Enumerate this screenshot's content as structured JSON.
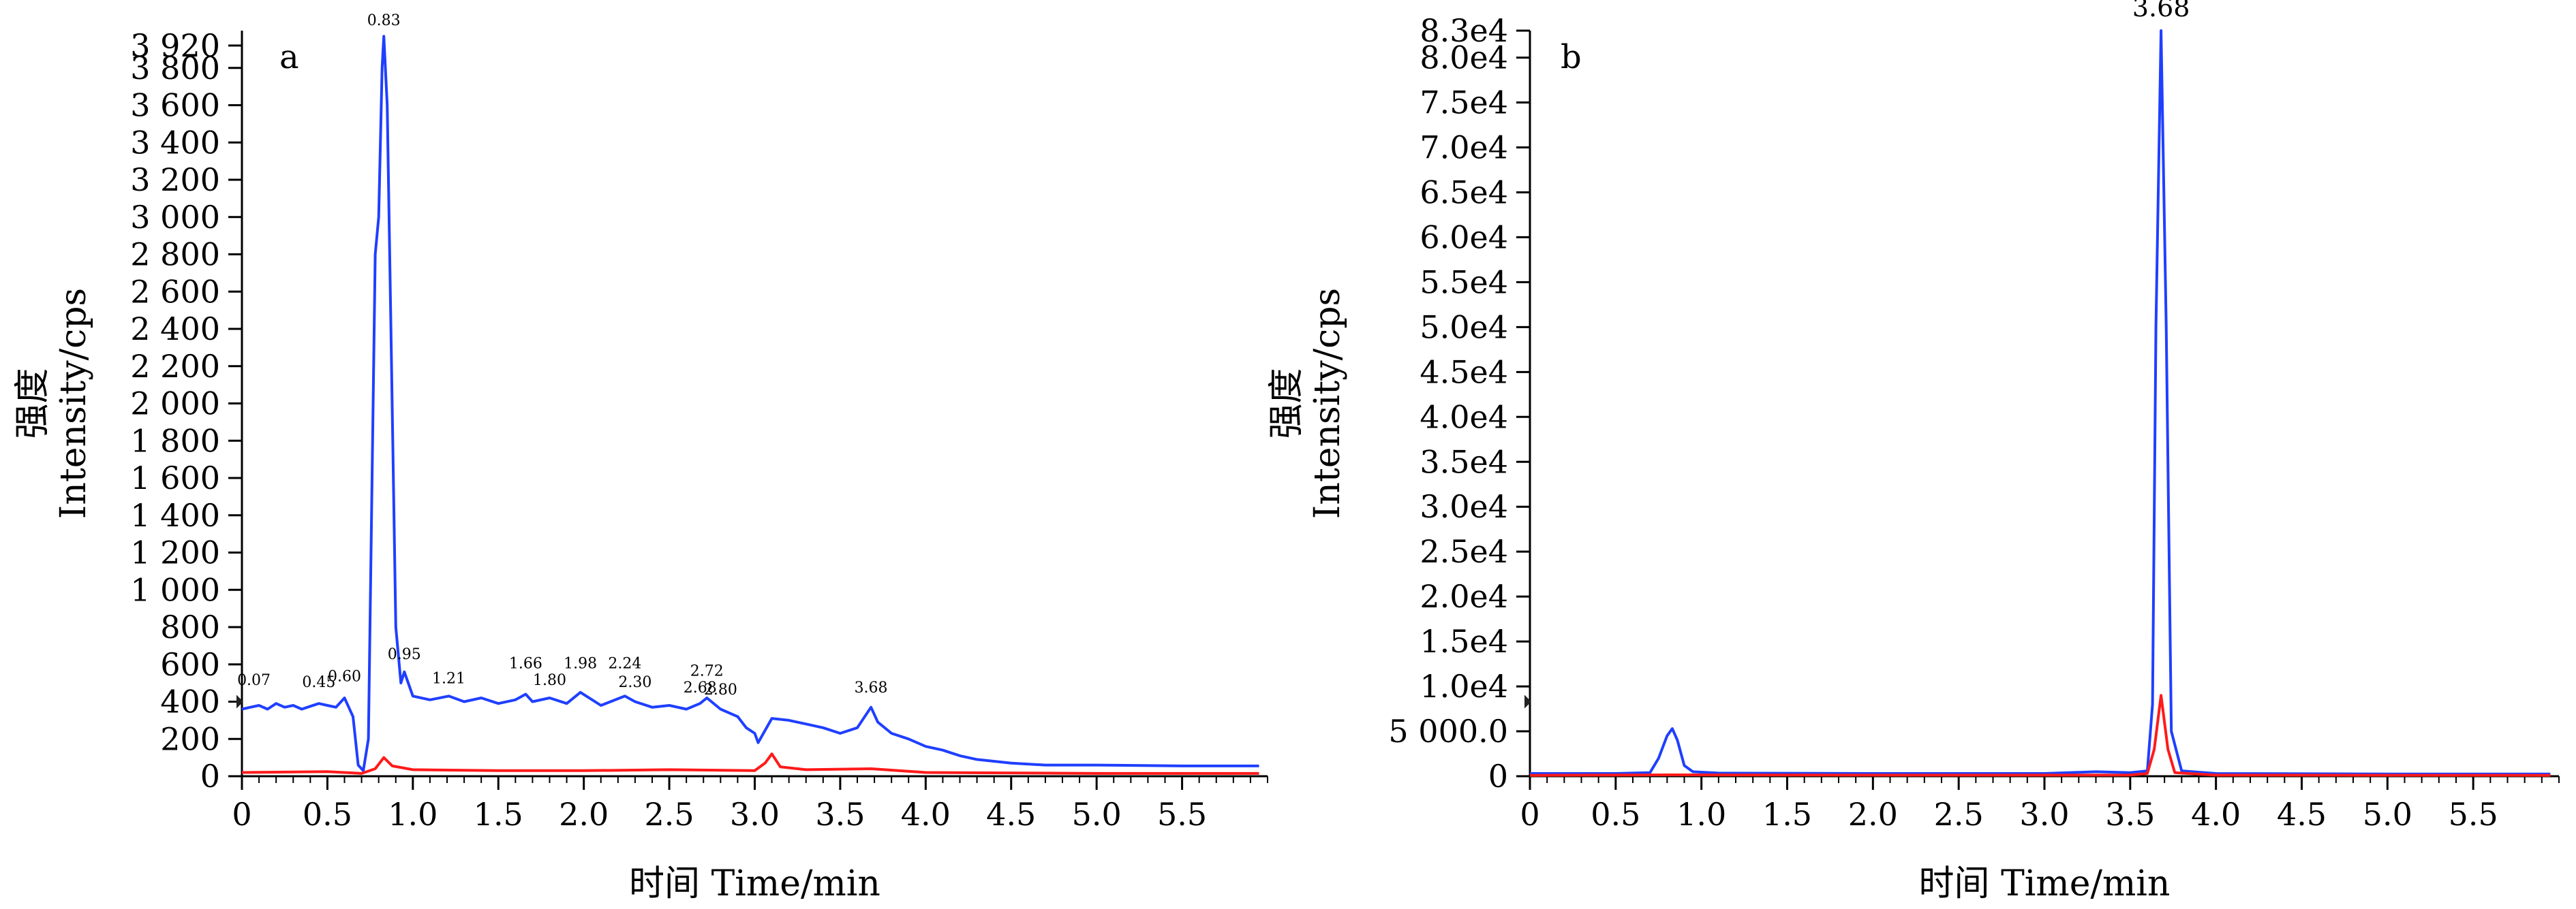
{
  "chart_data": [
    {
      "panel": "a",
      "type": "line",
      "xlabel": "时间 Time/min",
      "ylabel_cn": "强度",
      "ylabel_en": "Intensity/cps",
      "xlim": [
        0,
        6
      ],
      "ylim": [
        0,
        4000
      ],
      "x_ticks": [
        0,
        0.5,
        1.0,
        1.5,
        2.0,
        2.5,
        3.0,
        3.5,
        4.0,
        4.5,
        5.0,
        5.5
      ],
      "x_tick_labels": [
        "0",
        "0.5",
        "1.0",
        "1.5",
        "2.0",
        "2.5",
        "3.0",
        "3.5",
        "4.0",
        "4.5",
        "5.0",
        "5.5"
      ],
      "y_ticks": [
        0,
        200,
        400,
        600,
        800,
        1000,
        1200,
        1400,
        1600,
        1800,
        2000,
        2200,
        2400,
        2600,
        2800,
        3000,
        3200,
        3400,
        3600,
        3800,
        3920
      ],
      "y_tick_labels": [
        "0",
        "200",
        "400",
        "600",
        "800",
        "1 000",
        "1 200",
        "1 400",
        "1 600",
        "1 800",
        "2 000",
        "2 200",
        "2 400",
        "2 600",
        "2 800",
        "3 000",
        "3 200",
        "3 400",
        "3 600",
        "3 800",
        "3 920"
      ],
      "series": [
        {
          "color": "#1f3fff",
          "points": [
            [
              0,
              360
            ],
            [
              0.05,
              370
            ],
            [
              0.1,
              380
            ],
            [
              0.15,
              360
            ],
            [
              0.2,
              390
            ],
            [
              0.25,
              370
            ],
            [
              0.3,
              380
            ],
            [
              0.35,
              360
            ],
            [
              0.4,
              375
            ],
            [
              0.45,
              390
            ],
            [
              0.5,
              380
            ],
            [
              0.55,
              370
            ],
            [
              0.6,
              420
            ],
            [
              0.65,
              320
            ],
            [
              0.68,
              60
            ],
            [
              0.71,
              30
            ],
            [
              0.74,
              200
            ],
            [
              0.78,
              2800
            ],
            [
              0.8,
              3000
            ],
            [
              0.82,
              3800
            ],
            [
              0.83,
              3970
            ],
            [
              0.85,
              3600
            ],
            [
              0.87,
              2500
            ],
            [
              0.9,
              800
            ],
            [
              0.93,
              500
            ],
            [
              0.95,
              560
            ],
            [
              1.0,
              430
            ],
            [
              1.1,
              410
            ],
            [
              1.21,
              430
            ],
            [
              1.3,
              400
            ],
            [
              1.4,
              420
            ],
            [
              1.5,
              390
            ],
            [
              1.6,
              410
            ],
            [
              1.66,
              440
            ],
            [
              1.7,
              400
            ],
            [
              1.8,
              420
            ],
            [
              1.9,
              390
            ],
            [
              1.98,
              450
            ],
            [
              2.1,
              380
            ],
            [
              2.24,
              430
            ],
            [
              2.3,
              400
            ],
            [
              2.4,
              370
            ],
            [
              2.5,
              380
            ],
            [
              2.6,
              360
            ],
            [
              2.68,
              390
            ],
            [
              2.72,
              420
            ],
            [
              2.8,
              360
            ],
            [
              2.9,
              320
            ],
            [
              2.95,
              260
            ],
            [
              3.0,
              230
            ],
            [
              3.02,
              180
            ],
            [
              3.1,
              310
            ],
            [
              3.2,
              300
            ],
            [
              3.3,
              280
            ],
            [
              3.4,
              260
            ],
            [
              3.5,
              230
            ],
            [
              3.6,
              260
            ],
            [
              3.68,
              370
            ],
            [
              3.72,
              290
            ],
            [
              3.8,
              230
            ],
            [
              3.9,
              200
            ],
            [
              4.0,
              160
            ],
            [
              4.1,
              140
            ],
            [
              4.2,
              110
            ],
            [
              4.3,
              90
            ],
            [
              4.5,
              70
            ],
            [
              4.7,
              60
            ],
            [
              5.0,
              60
            ],
            [
              5.5,
              55
            ],
            [
              5.95,
              55
            ]
          ]
        },
        {
          "color": "#ff1a1a",
          "points": [
            [
              0,
              20
            ],
            [
              0.5,
              25
            ],
            [
              0.7,
              15
            ],
            [
              0.78,
              40
            ],
            [
              0.83,
              100
            ],
            [
              0.88,
              55
            ],
            [
              1.0,
              35
            ],
            [
              1.5,
              30
            ],
            [
              2.0,
              30
            ],
            [
              2.5,
              35
            ],
            [
              3.0,
              30
            ],
            [
              3.06,
              70
            ],
            [
              3.1,
              120
            ],
            [
              3.15,
              50
            ],
            [
              3.3,
              35
            ],
            [
              3.68,
              40
            ],
            [
              4.0,
              20
            ],
            [
              5.0,
              15
            ],
            [
              5.95,
              15
            ]
          ]
        }
      ],
      "annotations": [
        {
          "text": "0.07",
          "x": 0.07,
          "y": 460
        },
        {
          "text": "0.45",
          "x": 0.45,
          "y": 450
        },
        {
          "text": "0.60",
          "x": 0.6,
          "y": 480
        },
        {
          "text": "0.83",
          "x": 0.83,
          "y": 4000
        },
        {
          "text": "0.95",
          "x": 0.95,
          "y": 600
        },
        {
          "text": "1.21",
          "x": 1.21,
          "y": 470
        },
        {
          "text": "1.66",
          "x": 1.66,
          "y": 550
        },
        {
          "text": "1.80",
          "x": 1.8,
          "y": 460
        },
        {
          "text": "1.98",
          "x": 1.98,
          "y": 550
        },
        {
          "text": "2.24",
          "x": 2.24,
          "y": 550
        },
        {
          "text": "2.30",
          "x": 2.3,
          "y": 450
        },
        {
          "text": "2.68",
          "x": 2.68,
          "y": 420
        },
        {
          "text": "2.72",
          "x": 2.72,
          "y": 510
        },
        {
          "text": "2.80",
          "x": 2.8,
          "y": 410
        },
        {
          "text": "3.68",
          "x": 3.68,
          "y": 420
        }
      ]
    },
    {
      "panel": "b",
      "type": "line",
      "xlabel": "时间 Time/min",
      "ylabel_cn": "强度",
      "ylabel_en": "Intensity/cps",
      "xlim": [
        0,
        6
      ],
      "ylim": [
        0,
        83000
      ],
      "x_ticks": [
        0,
        0.5,
        1.0,
        1.5,
        2.0,
        2.5,
        3.0,
        3.5,
        4.0,
        4.5,
        5.0,
        5.5
      ],
      "x_tick_labels": [
        "0",
        "0.5",
        "1.0",
        "1.5",
        "2.0",
        "2.5",
        "3.0",
        "3.5",
        "4.0",
        "4.5",
        "5.0",
        "5.5"
      ],
      "y_ticks": [
        0,
        5000,
        10000,
        15000,
        20000,
        25000,
        30000,
        35000,
        40000,
        45000,
        50000,
        55000,
        60000,
        65000,
        70000,
        75000,
        80000,
        83000
      ],
      "y_tick_labels": [
        "0",
        "5 000.0",
        "1.0e4",
        "1.5e4",
        "2.0e4",
        "2.5e4",
        "3.0e4",
        "3.5e4",
        "4.0e4",
        "4.5e4",
        "5.0e4",
        "5.5e4",
        "6.0e4",
        "6.5e4",
        "7.0e4",
        "7.5e4",
        "8.0e4",
        "8.3e4"
      ],
      "series": [
        {
          "color": "#1f3fff",
          "points": [
            [
              0,
              300
            ],
            [
              0.5,
              300
            ],
            [
              0.7,
              400
            ],
            [
              0.75,
              2000
            ],
            [
              0.8,
              4500
            ],
            [
              0.83,
              5300
            ],
            [
              0.86,
              4000
            ],
            [
              0.9,
              1200
            ],
            [
              0.95,
              500
            ],
            [
              1.1,
              350
            ],
            [
              2.0,
              300
            ],
            [
              3.0,
              300
            ],
            [
              3.3,
              500
            ],
            [
              3.5,
              400
            ],
            [
              3.6,
              600
            ],
            [
              3.63,
              8000
            ],
            [
              3.65,
              50000
            ],
            [
              3.68,
              83000
            ],
            [
              3.71,
              50000
            ],
            [
              3.74,
              5000
            ],
            [
              3.8,
              600
            ],
            [
              4.0,
              300
            ],
            [
              5.0,
              250
            ],
            [
              5.95,
              250
            ]
          ]
        },
        {
          "color": "#ff1a1a",
          "points": [
            [
              0,
              100
            ],
            [
              0.8,
              150
            ],
            [
              2.0,
              120
            ],
            [
              3.5,
              130
            ],
            [
              3.6,
              300
            ],
            [
              3.64,
              3000
            ],
            [
              3.68,
              9000
            ],
            [
              3.72,
              3000
            ],
            [
              3.76,
              400
            ],
            [
              4.0,
              120
            ],
            [
              5.95,
              100
            ]
          ]
        }
      ],
      "annotations": [
        {
          "text": "3.68",
          "x": 3.68,
          "y": 84000
        }
      ]
    }
  ]
}
